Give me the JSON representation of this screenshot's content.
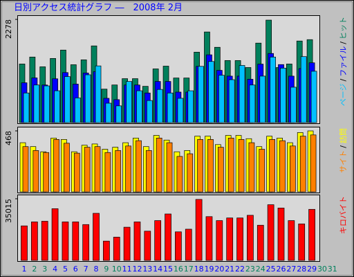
{
  "title": "日別アクセス統計グラフ ―　2008年 2月",
  "chart_data": [
    {
      "type": "bar",
      "ylim": [
        0,
        2278
      ],
      "yticks": [
        2278
      ],
      "legend_separator": "/",
      "series": [
        {
          "name": "ヒット",
          "color": "#00805c",
          "values": [
            1273,
            1430,
            1210,
            1398,
            1587,
            1257,
            1367,
            1681,
            707,
            801,
            943,
            943,
            770,
            1163,
            1225,
            958,
            958,
            1540,
            1995,
            1650,
            1351,
            1351,
            1194,
            1744,
            2262,
            1194,
            1273,
            1791,
            1822,
            null,
            null
          ]
        },
        {
          "name": "ファイル",
          "color": "#0000ff",
          "values": [
            850,
            960,
            800,
            940,
            1080,
            820,
            1070,
            1100,
            500,
            470,
            800,
            800,
            620,
            880,
            880,
            640,
            640,
            1220,
            1480,
            1130,
            1000,
            1000,
            930,
            1270,
            1510,
            1260,
            1000,
            1170,
            1300,
            null,
            null
          ]
        },
        {
          "name": "ページ",
          "color": "#00c0ff",
          "values": [
            620,
            800,
            780,
            670,
            990,
            510,
            1030,
            1230,
            390,
            330,
            880,
            670,
            450,
            700,
            620,
            500,
            670,
            1220,
            1330,
            1020,
            920,
            1240,
            800,
            1000,
            1430,
            1180,
            750,
            1440,
            1110,
            null,
            null
          ]
        }
      ]
    },
    {
      "type": "bar",
      "ylim": [
        0,
        468
      ],
      "yticks": [
        468
      ],
      "legend_separator": "/",
      "series": [
        {
          "name": "訪問",
          "color": "#ffff00",
          "values": [
            374,
            343,
            302,
            411,
            400,
            302,
            354,
            364,
            322,
            338,
            374,
            411,
            343,
            432,
            395,
            302,
            312,
            426,
            426,
            359,
            432,
            432,
            406,
            343,
            426,
            411,
            374,
            455,
            468,
            null,
            null
          ]
        },
        {
          "name": "サイト",
          "color": "#ff8000",
          "values": [
            343,
            312,
            296,
            400,
            370,
            291,
            338,
            343,
            296,
            312,
            348,
            390,
            312,
            411,
            374,
            265,
            286,
            400,
            400,
            338,
            411,
            400,
            374,
            322,
            400,
            390,
            348,
            426,
            436,
            null,
            null
          ]
        }
      ]
    },
    {
      "type": "bar",
      "ylim": [
        0,
        35015
      ],
      "yticks": [
        35015
      ],
      "categories": [
        "1",
        "2",
        "3",
        "4",
        "5",
        "6",
        "7",
        "8",
        "9",
        "10",
        "11",
        "12",
        "13",
        "14",
        "15",
        "16",
        "17",
        "18",
        "19",
        "20",
        "21",
        "22",
        "23",
        "24",
        "25",
        "26",
        "27",
        "28",
        "29",
        "30",
        "31"
      ],
      "category_colors": [
        "#0000ff",
        "#00805c",
        "#00805c",
        "#0000ff",
        "#0000ff",
        "#0000ff",
        "#0000ff",
        "#0000ff",
        "#00805c",
        "#00805c",
        "#0000ff",
        "#0000ff",
        "#0000ff",
        "#0000ff",
        "#0000ff",
        "#00805c",
        "#00805c",
        "#0000ff",
        "#0000ff",
        "#0000ff",
        "#0000ff",
        "#0000ff",
        "#00805c",
        "#00805c",
        "#0000ff",
        "#0000ff",
        "#0000ff",
        "#0000ff",
        "#0000ff",
        "#00805c",
        "#00805c"
      ],
      "series": [
        {
          "name": "キロバイト",
          "color": "#ff0000",
          "values": [
            19064,
            21400,
            21787,
            29180,
            21400,
            21400,
            19842,
            26457,
            10116,
            12450,
            18287,
            21400,
            15952,
            22177,
            26068,
            15563,
            17119,
            34626,
            24512,
            22177,
            23734,
            23734,
            25290,
            19454,
            31515,
            29569,
            22177,
            20232,
            28792,
            null,
            null
          ]
        }
      ]
    }
  ]
}
